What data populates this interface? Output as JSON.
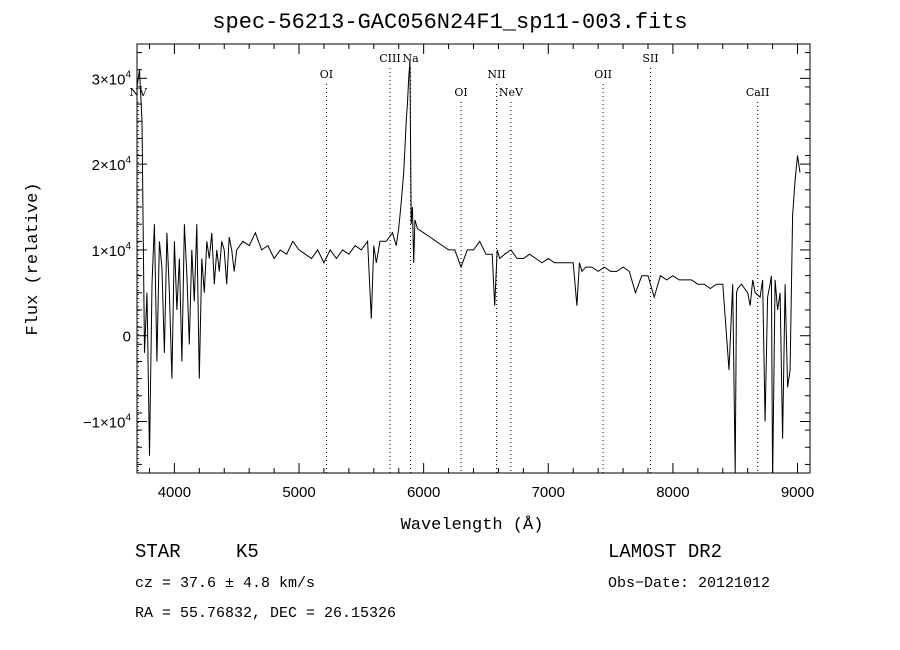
{
  "chart_data": {
    "type": "line",
    "title": "spec-56213-GAC056N24F1_sp11-003.fits",
    "xlabel": "Wavelength (Å)",
    "ylabel": "Flux (relative)",
    "xlim": [
      3700,
      9100
    ],
    "ylim": [
      -16000,
      34000
    ],
    "x_ticks": [
      4000,
      5000,
      6000,
      7000,
      8000,
      9000
    ],
    "x_tick_labels": [
      "4000",
      "5000",
      "6000",
      "7000",
      "8000",
      "9000"
    ],
    "y_ticks": [
      -10000,
      0,
      10000,
      20000,
      30000
    ],
    "y_tick_labels": [
      {
        "base": "−1×10",
        "exp": "4"
      },
      {
        "base": "0",
        "exp": ""
      },
      {
        "base": "1×10",
        "exp": "4"
      },
      {
        "base": "2×10",
        "exp": "4"
      },
      {
        "base": "3×10",
        "exp": "4"
      }
    ],
    "grid": false,
    "line_color": "#000000",
    "spectral_lines": [
      {
        "name": "NV",
        "x": 3710,
        "row": 3
      },
      {
        "name": "OI",
        "x": 5220,
        "row": 2
      },
      {
        "name": "CIII",
        "x": 5730,
        "row": 1
      },
      {
        "name": "Na",
        "x": 5895,
        "row": 1
      },
      {
        "name": "OI",
        "x": 6300,
        "row": 3
      },
      {
        "name": "NII",
        "x": 6585,
        "row": 2
      },
      {
        "name": "NeV",
        "x": 6700,
        "row": 3
      },
      {
        "name": "OII",
        "x": 7440,
        "row": 2
      },
      {
        "name": "SII",
        "x": 7820,
        "row": 1
      },
      {
        "name": "CaII",
        "x": 8680,
        "row": 3
      }
    ],
    "series": [
      {
        "x": [
          3700,
          3720,
          3740,
          3760,
          3780,
          3800,
          3820,
          3840,
          3860,
          3880,
          3900,
          3920,
          3940,
          3960,
          3980,
          4000,
          4020,
          4040,
          4060,
          4080,
          4100,
          4120,
          4140,
          4160,
          4180,
          4200,
          4220,
          4240,
          4260,
          4280,
          4300,
          4320,
          4340,
          4360,
          4380,
          4400,
          4420,
          4440,
          4460,
          4480,
          4500,
          4550,
          4600,
          4650,
          4700,
          4750,
          4800,
          4850,
          4900,
          4950,
          5000,
          5050,
          5100,
          5150,
          5200,
          5250,
          5300,
          5350,
          5400,
          5450,
          5500,
          5550,
          5580,
          5600,
          5620,
          5650,
          5700,
          5750,
          5780,
          5800,
          5820,
          5840,
          5850,
          5860,
          5870,
          5880,
          5890,
          5900,
          5910,
          5920,
          5930,
          5950,
          6000,
          6050,
          6100,
          6150,
          6200,
          6250,
          6300,
          6350,
          6400,
          6450,
          6500,
          6550,
          6570,
          6590,
          6610,
          6650,
          6700,
          6750,
          6800,
          6850,
          6900,
          6950,
          7000,
          7050,
          7100,
          7150,
          7200,
          7230,
          7250,
          7270,
          7300,
          7350,
          7400,
          7450,
          7500,
          7550,
          7600,
          7650,
          7700,
          7750,
          7800,
          7850,
          7900,
          7950,
          8000,
          8050,
          8100,
          8150,
          8200,
          8250,
          8300,
          8350,
          8400,
          8450,
          8480,
          8500,
          8510,
          8520,
          8550,
          8600,
          8620,
          8640,
          8660,
          8700,
          8720,
          8740,
          8760,
          8780,
          8790,
          8800,
          8820,
          8840,
          8860,
          8880,
          8900,
          8920,
          8940,
          8960,
          8980,
          9000,
          9020
        ],
        "y": [
          29000,
          31000,
          25000,
          -2000,
          5000,
          -14000,
          6000,
          13000,
          -3000,
          11000,
          8000,
          -2000,
          12000,
          5000,
          -5000,
          11000,
          3000,
          9000,
          -3000,
          13000,
          7000,
          -1000,
          10000,
          4000,
          13000,
          -5000,
          9000,
          5000,
          11000,
          9000,
          12000,
          6000,
          10000,
          7500,
          11000,
          10000,
          6000,
          11500,
          10000,
          7500,
          10000,
          11000,
          10500,
          12000,
          10000,
          10500,
          9000,
          10000,
          9500,
          11000,
          10000,
          9500,
          9000,
          10000,
          8500,
          10000,
          9000,
          10000,
          9500,
          10500,
          10000,
          11000,
          2000,
          10500,
          8500,
          11000,
          11000,
          12000,
          10500,
          12500,
          15500,
          19000,
          22000,
          25000,
          27000,
          30000,
          32000,
          13000,
          15000,
          8500,
          13500,
          12500,
          12000,
          11500,
          11000,
          10500,
          10000,
          10000,
          8000,
          10000,
          10000,
          11000,
          9500,
          9500,
          3500,
          10000,
          9000,
          9500,
          10000,
          9000,
          9000,
          9500,
          9000,
          8500,
          9000,
          8500,
          8500,
          8500,
          8500,
          3500,
          8500,
          7500,
          8000,
          8000,
          7500,
          8000,
          7500,
          7500,
          8000,
          7500,
          5000,
          7000,
          7000,
          4500,
          7000,
          6500,
          7000,
          6500,
          6500,
          6500,
          6000,
          6000,
          5500,
          6000,
          6000,
          -4000,
          6000,
          -16000,
          5000,
          5500,
          6000,
          5000,
          3500,
          6500,
          5000,
          4500,
          6500,
          -10000,
          4500,
          6000,
          7000,
          -17000,
          6500,
          3000,
          5000,
          -12000,
          6000,
          -6000,
          -4000,
          14000,
          18000,
          21000,
          19000
        ]
      }
    ]
  },
  "footer": {
    "object_type": "STAR",
    "subclass": "K5",
    "survey": "LAMOST DR2",
    "redshift": "cz = 37.6 ± 4.8 km/s",
    "obs_date": "Obs−Date: 20121012",
    "coords": "RA =  55.76832, DEC =  26.15326"
  }
}
